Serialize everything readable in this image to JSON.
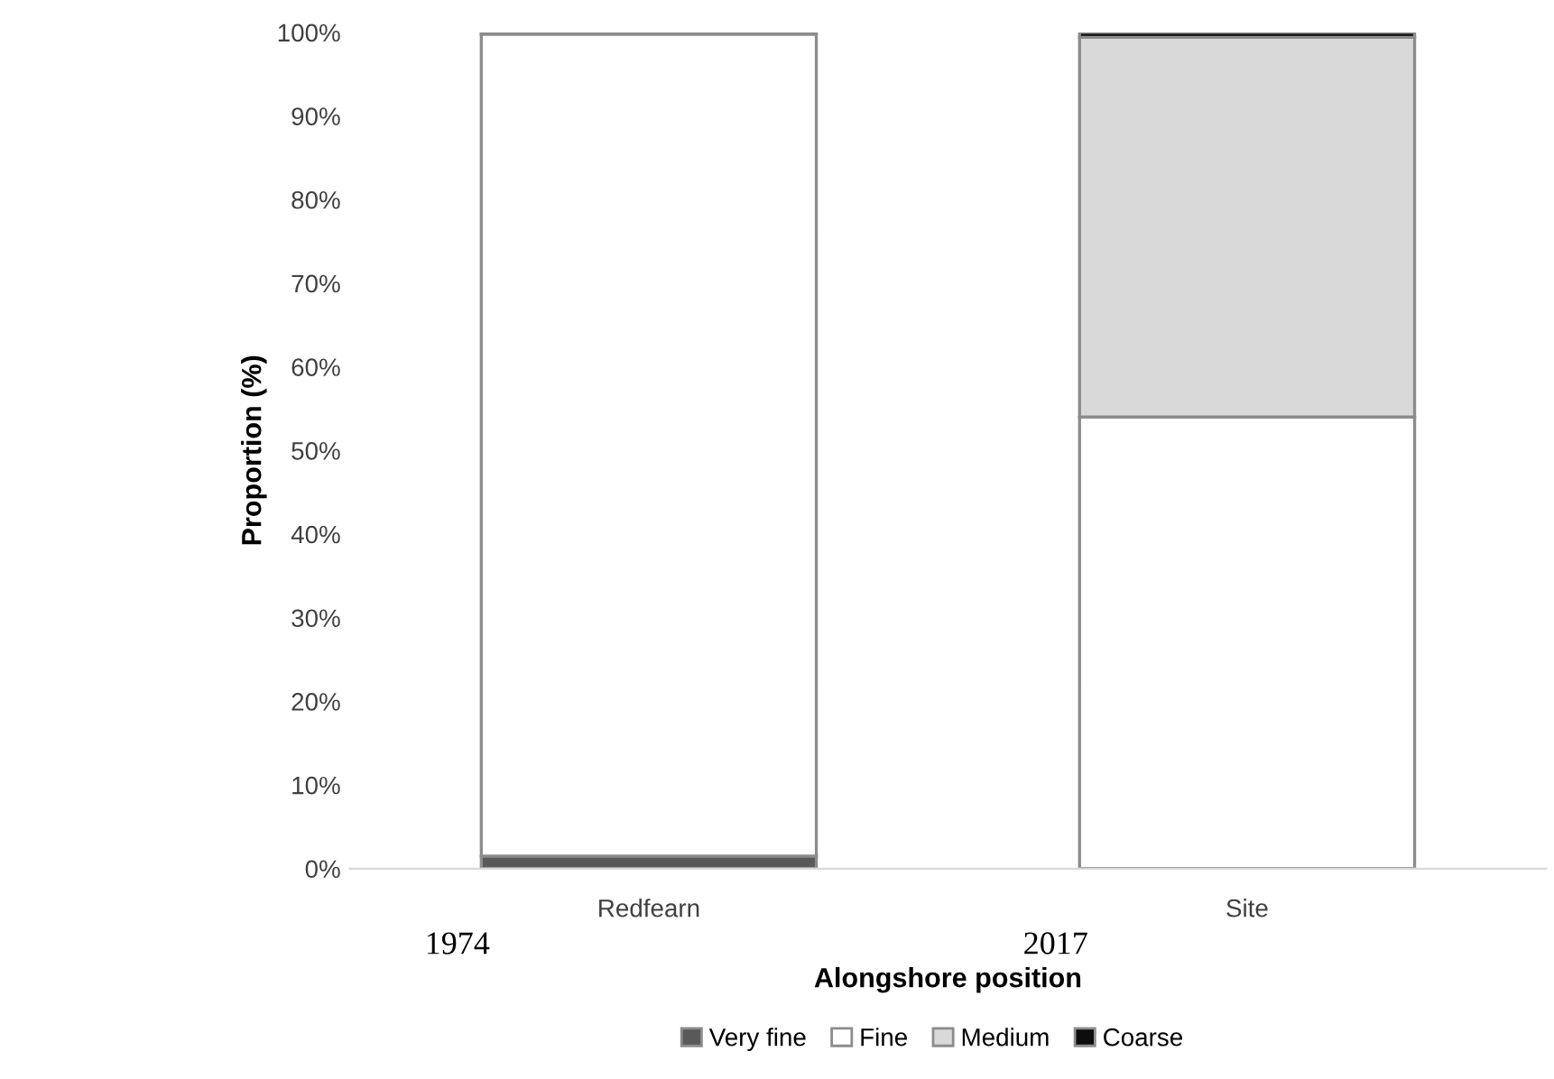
{
  "chart_data": {
    "type": "bar",
    "stacked": true,
    "xlabel": "Alongshore position",
    "ylabel": "Proportion (%)",
    "categories": [
      "Redfearn",
      "Site"
    ],
    "series": [
      {
        "name": "Very fine",
        "color": "#595959",
        "values": [
          1.5,
          0
        ]
      },
      {
        "name": "Fine",
        "color": "#ffffff",
        "values": [
          98.3,
          54
        ]
      },
      {
        "name": "Medium",
        "color": "#d9d9d9",
        "values": [
          0.2,
          45.4
        ]
      },
      {
        "name": "Coarse",
        "color": "#0d0d0d",
        "values": [
          0,
          0.6
        ]
      }
    ],
    "ylim": [
      0,
      100
    ],
    "yticks": [
      {
        "value": 0,
        "label": "0%"
      },
      {
        "value": 10,
        "label": "10%"
      },
      {
        "value": 20,
        "label": "20%"
      },
      {
        "value": 30,
        "label": "30%"
      },
      {
        "value": 40,
        "label": "40%"
      },
      {
        "value": 50,
        "label": "50%"
      },
      {
        "value": 60,
        "label": "60%"
      },
      {
        "value": 70,
        "label": "70%"
      },
      {
        "value": 80,
        "label": "80%"
      },
      {
        "value": 90,
        "label": "90%"
      },
      {
        "value": 100,
        "label": "100%"
      }
    ],
    "grid": false,
    "legend": "bottom",
    "annotations": [
      "1974",
      "2017"
    ]
  }
}
